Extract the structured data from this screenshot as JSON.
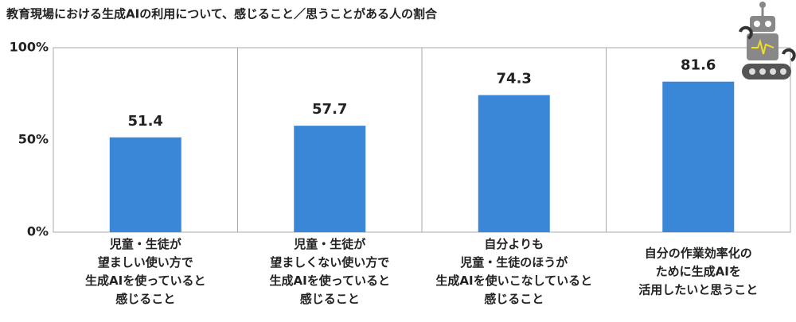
{
  "chart_data": {
    "type": "bar",
    "title": "教育現場における生成AIの利用について、感じること／思うことがある人の割合",
    "categories": [
      [
        "児童・生徒が",
        "望ましい使い方で",
        "生成AIを使っていると",
        "感じること"
      ],
      [
        "児童・生徒が",
        "望ましくない使い方で",
        "生成AIを使っていると",
        "感じること"
      ],
      [
        "自分よりも",
        "児童・生徒のほうが",
        "生成AIを使いこなしていると",
        "感じること"
      ],
      [
        "自分の作業効率化の",
        "ために生成AIを",
        "活用したいと思うこと"
      ]
    ],
    "highlight_lines": [
      1,
      1,
      null,
      null
    ],
    "highlight_color": "#e8202a",
    "values": [
      51.4,
      57.7,
      74.3,
      81.6
    ],
    "color": "#3a87d8",
    "ylim": [
      0,
      100
    ],
    "yticks": [
      {
        "value": 0,
        "label": "0%"
      },
      {
        "value": 50,
        "label": "50%"
      },
      {
        "value": 100,
        "label": "100%"
      }
    ],
    "grid": false
  }
}
